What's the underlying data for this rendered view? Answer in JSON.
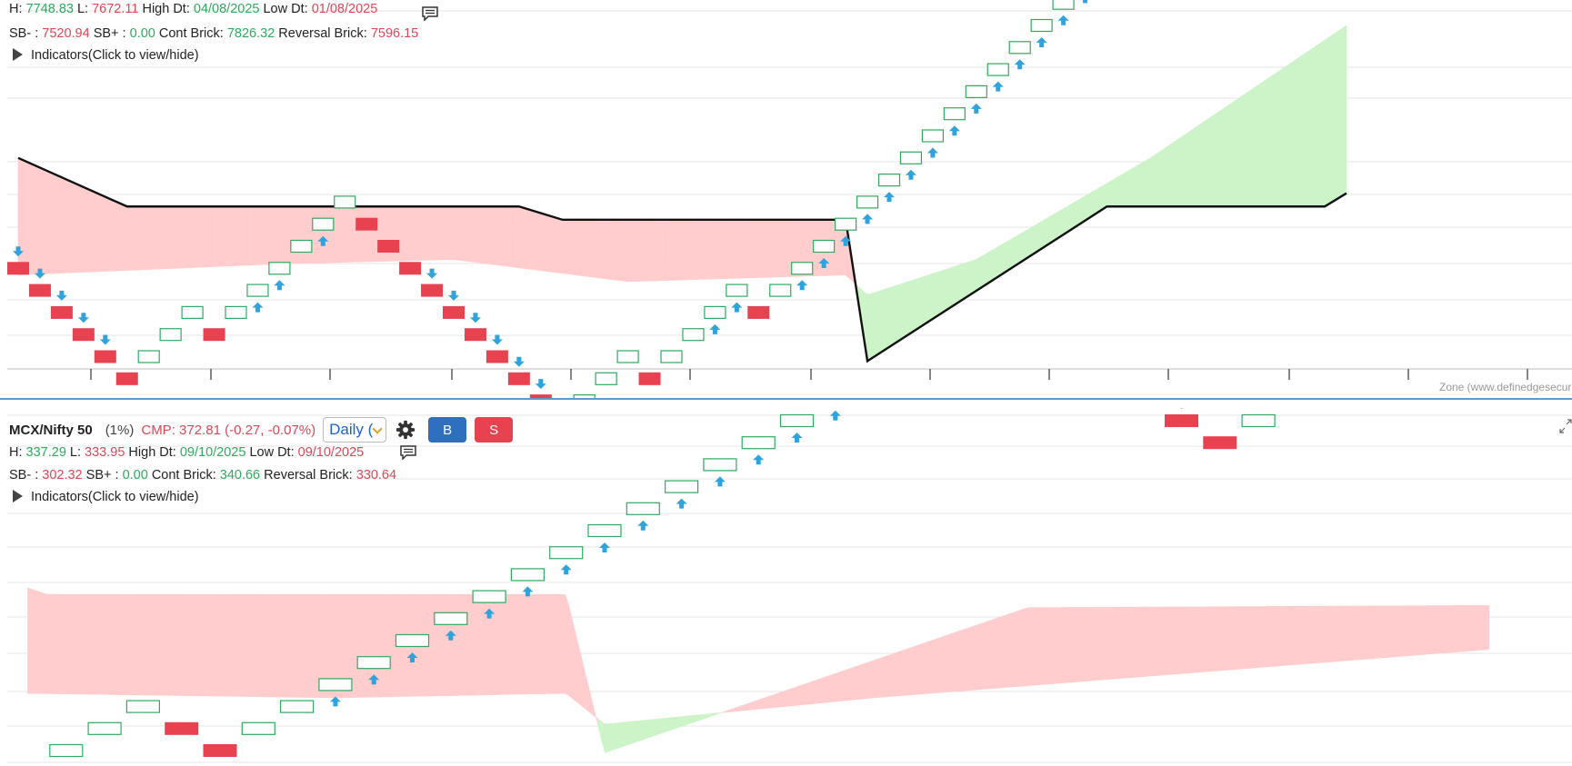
{
  "colors": {
    "bull_brick": "#2eaa5e",
    "bear_brick": "#e8414f",
    "arrow": "#2fa3dd",
    "cloud_bear": "#ffcdcd",
    "cloud_bull": "#cdf3c9",
    "label_green": "#2eaa5e",
    "label_red": "#e04657"
  },
  "chart1": {
    "info1": {
      "h_label": "H: ",
      "h_value": "7748.83",
      "l_label": " L: ",
      "l_value": "7672.11",
      "hd_label": " High Dt: ",
      "hd_value": "04/08/2025",
      "ld_label": " Low Dt: ",
      "ld_value": "01/08/2025"
    },
    "info2": {
      "sbm_label": "SB- : ",
      "sbm_value": "7520.94",
      "sbp_label": " SB+ : ",
      "sbp_value": "0.00",
      "cont_label": " Cont Brick: ",
      "cont_value": "7826.32",
      "rev_label": " Reversal Brick: ",
      "rev_value": "7596.15"
    },
    "indicators_label": "Indicators(Click to view/hide)",
    "watermark": "Zone (www.definedgesecuri",
    "chart_data": {
      "type": "renko",
      "bricks": [
        {
          "d": -1,
          "lvl": -1
        },
        {
          "d": -1,
          "lvl": -2
        },
        {
          "d": -1,
          "lvl": -3
        },
        {
          "d": -1,
          "lvl": -4
        },
        {
          "d": -1,
          "lvl": -5
        },
        {
          "d": -1,
          "lvl": -6
        },
        {
          "d": 1,
          "lvl": -5
        },
        {
          "d": 1,
          "lvl": -4
        },
        {
          "d": 1,
          "lvl": -3
        },
        {
          "d": -1,
          "lvl": -4
        },
        {
          "d": 1,
          "lvl": -3
        },
        {
          "d": 1,
          "lvl": -2
        },
        {
          "d": 1,
          "lvl": -1
        },
        {
          "d": 1,
          "lvl": 0
        },
        {
          "d": 1,
          "lvl": 1
        },
        {
          "d": 1,
          "lvl": 2
        },
        {
          "d": -1,
          "lvl": 1
        },
        {
          "d": -1,
          "lvl": 0
        },
        {
          "d": -1,
          "lvl": -1
        },
        {
          "d": -1,
          "lvl": -2
        },
        {
          "d": -1,
          "lvl": -3
        },
        {
          "d": -1,
          "lvl": -4
        },
        {
          "d": -1,
          "lvl": -5
        },
        {
          "d": -1,
          "lvl": -6
        },
        {
          "d": -1,
          "lvl": -7
        },
        {
          "d": -1,
          "lvl": -8
        },
        {
          "d": 1,
          "lvl": -7
        },
        {
          "d": 1,
          "lvl": -6
        },
        {
          "d": 1,
          "lvl": -5
        },
        {
          "d": -1,
          "lvl": -6
        },
        {
          "d": 1,
          "lvl": -5
        },
        {
          "d": 1,
          "lvl": -4
        },
        {
          "d": 1,
          "lvl": -3
        },
        {
          "d": 1,
          "lvl": -2
        },
        {
          "d": -1,
          "lvl": -3
        },
        {
          "d": 1,
          "lvl": -2
        },
        {
          "d": 1,
          "lvl": -1
        },
        {
          "d": 1,
          "lvl": 0
        },
        {
          "d": 1,
          "lvl": 1
        },
        {
          "d": 1,
          "lvl": 2
        },
        {
          "d": 1,
          "lvl": 3
        },
        {
          "d": 1,
          "lvl": 4
        },
        {
          "d": 1,
          "lvl": 5
        },
        {
          "d": 1,
          "lvl": 6
        },
        {
          "d": 1,
          "lvl": 7
        },
        {
          "d": 1,
          "lvl": 8
        },
        {
          "d": 1,
          "lvl": 9
        },
        {
          "d": 1,
          "lvl": 10
        },
        {
          "d": 1,
          "lvl": 11
        },
        {
          "d": 1,
          "lvl": 12
        },
        {
          "d": 1,
          "lvl": 13
        },
        {
          "d": 1,
          "lvl": 14
        },
        {
          "d": 1,
          "lvl": 15
        },
        {
          "d": 1,
          "lvl": 16
        },
        {
          "d": 1,
          "lvl": 17
        },
        {
          "d": -1,
          "lvl": 16
        },
        {
          "d": -1,
          "lvl": 15
        },
        {
          "d": -1,
          "lvl": 14
        },
        {
          "d": 1,
          "lvl": 15
        },
        {
          "d": 1,
          "lvl": 16
        },
        {
          "d": 1,
          "lvl": 17
        },
        {
          "d": -1,
          "lvl": 16
        },
        {
          "d": 1,
          "lvl": 17
        },
        {
          "d": 1,
          "lvl": 18
        },
        {
          "d": 1,
          "lvl": 19
        }
      ],
      "arrows_down": [
        0,
        1,
        2,
        3,
        4,
        19,
        20,
        21,
        22,
        23,
        24
      ],
      "arrows_up": [
        11,
        12,
        14,
        32,
        33,
        36,
        37,
        38,
        39,
        40,
        41,
        42,
        43,
        44,
        45,
        46,
        47,
        48,
        49,
        50,
        51,
        52,
        53,
        54,
        57,
        58,
        61,
        62,
        63
      ],
      "ichimoku_a": [
        [
          0,
          -1.3
        ],
        [
          12,
          -0.8
        ],
        [
          20,
          -0.6
        ],
        [
          28,
          -1.6
        ],
        [
          38,
          -1.3
        ],
        [
          39,
          -2.2
        ],
        [
          44,
          -0.6
        ],
        [
          52,
          4.0
        ],
        [
          61,
          10.0
        ]
      ],
      "ichimoku_b": [
        [
          0,
          4.0
        ],
        [
          5,
          1.8
        ],
        [
          23,
          1.8
        ],
        [
          25,
          1.2
        ],
        [
          38,
          1.2
        ],
        [
          39,
          -5.2
        ],
        [
          50,
          1.8
        ],
        [
          60,
          1.8
        ],
        [
          61,
          2.4
        ]
      ],
      "line": [
        [
          0,
          4.0
        ],
        [
          5,
          1.8
        ],
        [
          23,
          1.8
        ],
        [
          25,
          1.2
        ],
        [
          38,
          1.2
        ],
        [
          39,
          -5.2
        ],
        [
          50,
          1.8
        ],
        [
          60,
          1.8
        ],
        [
          61,
          2.4
        ]
      ]
    }
  },
  "chart2": {
    "symbol": "MCX/Nifty 50",
    "pct": "(1%)",
    "cmp": "CMP: 372.81 (-0.27, -0.07%)",
    "timeframe": "Daily (",
    "buy_label": "B",
    "sell_label": "S",
    "info1": {
      "h_label": "H: ",
      "h_value": "337.29",
      "l_label": " L: ",
      "l_value": "333.95",
      "hd_label": " High Dt: ",
      "hd_value": "09/10/2025",
      "ld_label": " Low Dt: ",
      "ld_value": "09/10/2025"
    },
    "info2": {
      "sbm_label": "SB- : ",
      "sbm_value": "302.32",
      "sbp_label": " SB+ : ",
      "sbp_value": "0.00",
      "cont_label": " Cont Brick: ",
      "cont_value": "340.66",
      "rev_label": " Reversal Brick: ",
      "rev_value": "330.64"
    },
    "indicators_label": "Indicators(Click to view/hide)",
    "chart_data": {
      "type": "renko",
      "bricks": [
        {
          "d": -1,
          "lvl": -1
        },
        {
          "d": 1,
          "lvl": 0
        },
        {
          "d": 1,
          "lvl": 1
        },
        {
          "d": 1,
          "lvl": 2
        },
        {
          "d": -1,
          "lvl": 1
        },
        {
          "d": -1,
          "lvl": 0
        },
        {
          "d": 1,
          "lvl": 1
        },
        {
          "d": 1,
          "lvl": 2
        },
        {
          "d": 1,
          "lvl": 3
        },
        {
          "d": 1,
          "lvl": 4
        },
        {
          "d": 1,
          "lvl": 5
        },
        {
          "d": 1,
          "lvl": 6
        },
        {
          "d": 1,
          "lvl": 7
        },
        {
          "d": 1,
          "lvl": 8
        },
        {
          "d": 1,
          "lvl": 9
        },
        {
          "d": 1,
          "lvl": 10
        },
        {
          "d": 1,
          "lvl": 11
        },
        {
          "d": 1,
          "lvl": 12
        },
        {
          "d": 1,
          "lvl": 13
        },
        {
          "d": 1,
          "lvl": 14
        },
        {
          "d": 1,
          "lvl": 15
        },
        {
          "d": 1,
          "lvl": 16
        },
        {
          "d": 1,
          "lvl": 17
        },
        {
          "d": 1,
          "lvl": 18
        },
        {
          "d": 1,
          "lvl": 19
        },
        {
          "d": 1,
          "lvl": 20
        },
        {
          "d": -1,
          "lvl": 19
        },
        {
          "d": -1,
          "lvl": 18
        },
        {
          "d": -1,
          "lvl": 17
        },
        {
          "d": -1,
          "lvl": 16
        },
        {
          "d": -1,
          "lvl": 15
        },
        {
          "d": -1,
          "lvl": 14
        },
        {
          "d": 1,
          "lvl": 15
        },
        {
          "d": 1,
          "lvl": 16
        },
        {
          "d": 1,
          "lvl": 17
        },
        {
          "d": 1,
          "lvl": 18
        },
        {
          "d": -1,
          "lvl": 17
        },
        {
          "d": 1,
          "lvl": 18
        }
      ],
      "arrows_down": [
        29,
        30
      ],
      "arrows_up": [
        8,
        9,
        10,
        11,
        12,
        13,
        14,
        15,
        16,
        17,
        18,
        19,
        20,
        21,
        22,
        23,
        24,
        34
      ],
      "ichimoku_a": [
        [
          0,
          2.6
        ],
        [
          8,
          2.4
        ],
        [
          14,
          2.6
        ],
        [
          15,
          1.2
        ],
        [
          22,
          2.4
        ],
        [
          38,
          4.6
        ]
      ],
      "ichimoku_b": [
        [
          0,
          7.4
        ],
        [
          0.5,
          7.1
        ],
        [
          14,
          7.1
        ],
        [
          15,
          -0.1
        ],
        [
          26,
          6.5
        ],
        [
          38,
          6.6
        ]
      ]
    }
  }
}
